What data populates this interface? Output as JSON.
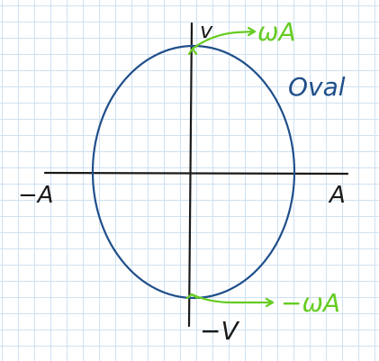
{
  "canvas": {
    "grid_color": "#cfe1f1",
    "ink_color": "#1a1a1a",
    "ellipse_color": "#1f4f8a",
    "highlight_color": "#66cc22"
  },
  "labels": {
    "title": "Oval",
    "top_axis": "v",
    "bottom_axis": "−V",
    "left_axis": "−A",
    "right_axis": "A",
    "top_note": "ωA",
    "bottom_note": "−ωA"
  }
}
